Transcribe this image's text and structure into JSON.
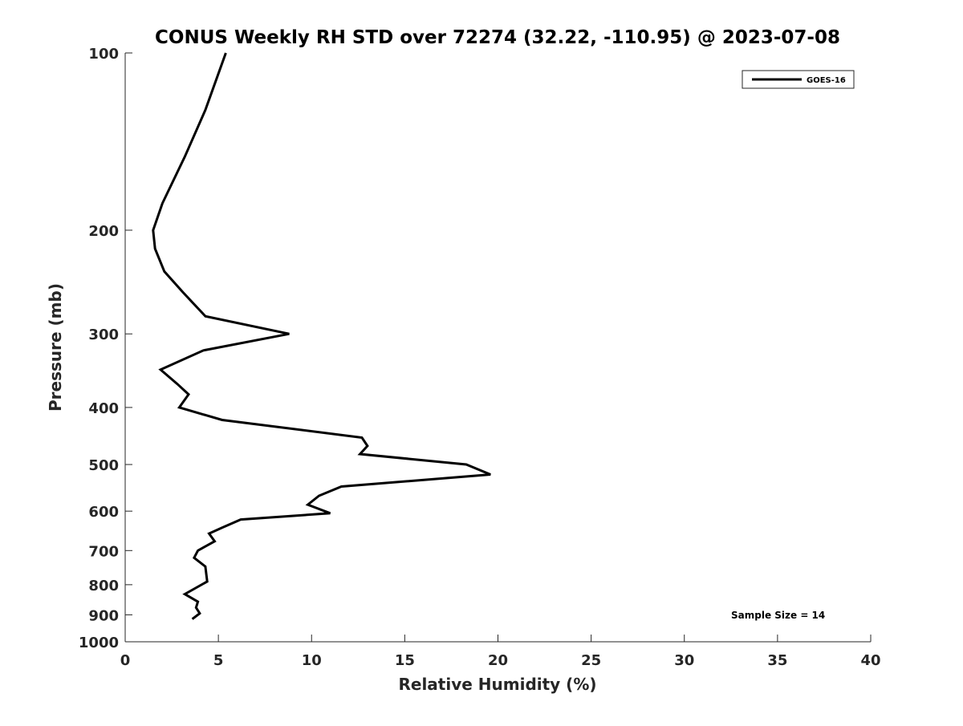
{
  "chart_data": {
    "type": "line",
    "title": "CONUS Weekly RH STD over 72274 (32.22, -110.95) @ 2023-07-08",
    "xlabel": "Relative Humidity (%)",
    "ylabel": "Pressure (mb)",
    "xlim": [
      0,
      40
    ],
    "ylim": [
      100,
      1000
    ],
    "y_scale": "log",
    "y_reversed": true,
    "xticks": [
      0,
      5,
      10,
      15,
      20,
      25,
      30,
      35,
      40
    ],
    "yticks": [
      100,
      200,
      300,
      400,
      500,
      600,
      700,
      800,
      900,
      1000
    ],
    "grid": false,
    "legend_position": "top-right",
    "series": [
      {
        "name": "GOES-16",
        "color": "#000000",
        "points": [
          {
            "x": 5.4,
            "p": 100
          },
          {
            "x": 4.3,
            "p": 125
          },
          {
            "x": 3.2,
            "p": 150
          },
          {
            "x": 2.0,
            "p": 180
          },
          {
            "x": 1.5,
            "p": 200
          },
          {
            "x": 1.6,
            "p": 215
          },
          {
            "x": 2.1,
            "p": 235
          },
          {
            "x": 3.1,
            "p": 255
          },
          {
            "x": 4.3,
            "p": 280
          },
          {
            "x": 8.8,
            "p": 300
          },
          {
            "x": 4.2,
            "p": 320
          },
          {
            "x": 1.9,
            "p": 345
          },
          {
            "x": 2.8,
            "p": 365
          },
          {
            "x": 3.4,
            "p": 380
          },
          {
            "x": 2.9,
            "p": 400
          },
          {
            "x": 5.2,
            "p": 420
          },
          {
            "x": 12.7,
            "p": 450
          },
          {
            "x": 13.0,
            "p": 465
          },
          {
            "x": 12.6,
            "p": 480
          },
          {
            "x": 18.3,
            "p": 500
          },
          {
            "x": 19.6,
            "p": 520
          },
          {
            "x": 11.6,
            "p": 545
          },
          {
            "x": 10.4,
            "p": 565
          },
          {
            "x": 9.8,
            "p": 585
          },
          {
            "x": 11.0,
            "p": 605
          },
          {
            "x": 6.2,
            "p": 620
          },
          {
            "x": 5.2,
            "p": 640
          },
          {
            "x": 4.5,
            "p": 655
          },
          {
            "x": 4.8,
            "p": 675
          },
          {
            "x": 3.9,
            "p": 700
          },
          {
            "x": 3.7,
            "p": 720
          },
          {
            "x": 4.3,
            "p": 745
          },
          {
            "x": 4.4,
            "p": 790
          },
          {
            "x": 3.2,
            "p": 830
          },
          {
            "x": 3.9,
            "p": 855
          },
          {
            "x": 3.8,
            "p": 875
          },
          {
            "x": 4.0,
            "p": 895
          },
          {
            "x": 3.6,
            "p": 915
          }
        ]
      }
    ],
    "annotations": [
      "Sample Size = 14"
    ]
  }
}
